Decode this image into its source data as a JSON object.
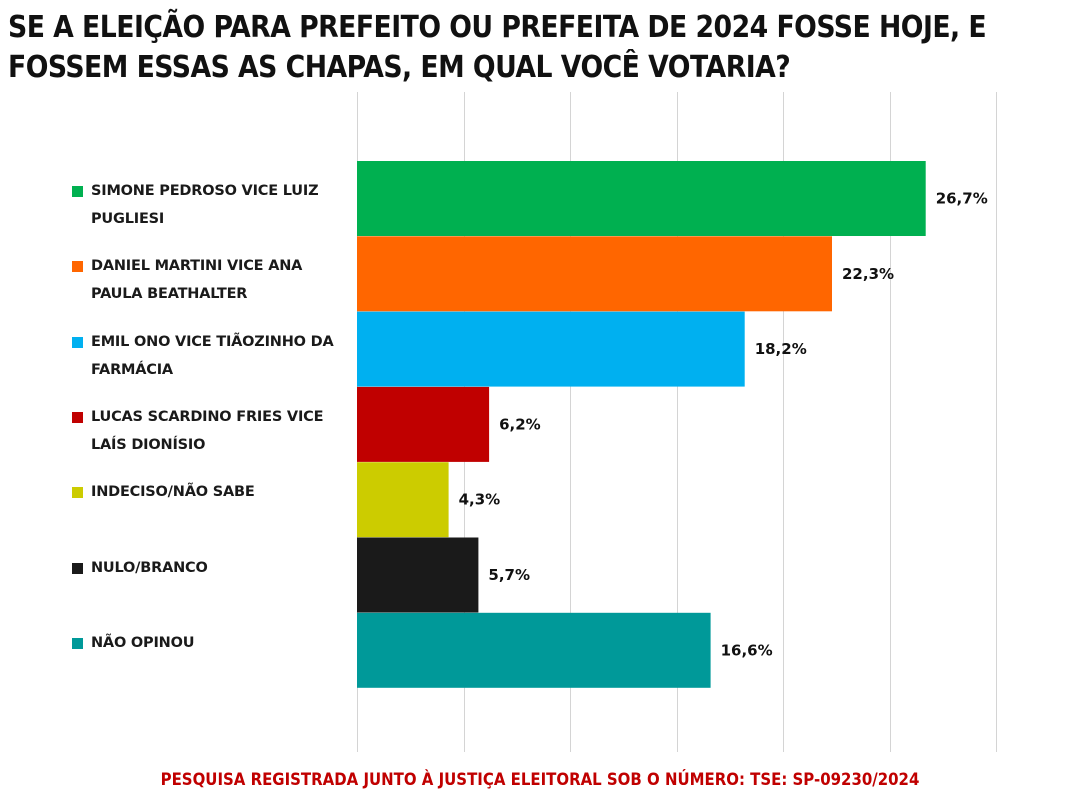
{
  "title": {
    "line1": "SE A ELEIÇÃO PARA PREFEITO OU PREFEITA DE 2024 FOSSE HOJE, E",
    "line2": "FOSSEM ESSAS AS CHAPAS, EM QUAL VOCÊ VOTARIA?"
  },
  "footer": "PESQUISA REGISTRADA JUNTO À JUSTIÇA ELEITORAL SOB O NÚMERO: TSE: SP-09230/2024",
  "chart_data": {
    "type": "bar",
    "orientation": "horizontal",
    "title": "SE A ELEIÇÃO PARA PREFEITO OU PREFEITA DE 2024 FOSSE HOJE, E FOSSEM ESSAS AS CHAPAS, EM QUAL VOCÊ VOTARIA?",
    "categories": [
      "SIMONE PEDROSO VICE LUIZ PUGLIESI",
      "DANIEL MARTINI VICE ANA PAULA BEATHALTER",
      "EMIL ONO VICE TIÃOZINHO DA FARMÁCIA",
      "LUCAS SCARDINO FRIES VICE LAÍS DIONÍSIO",
      "INDECISO/NÃO SABE",
      "NULO/BRANCO",
      "NÃO OPINOU"
    ],
    "values": [
      26.7,
      22.3,
      18.2,
      6.2,
      4.3,
      5.7,
      16.6
    ],
    "value_labels": [
      "26,7%",
      "22,3%",
      "18,2%",
      "6,2%",
      "4,3%",
      "5,7%",
      "16,6%"
    ],
    "colors": [
      "#00b050",
      "#ff6600",
      "#00b0f0",
      "#c00000",
      "#cccc00",
      "#1a1a1a",
      "#009999"
    ],
    "xlim": [
      0,
      30
    ],
    "grid": true,
    "legend": "left"
  }
}
